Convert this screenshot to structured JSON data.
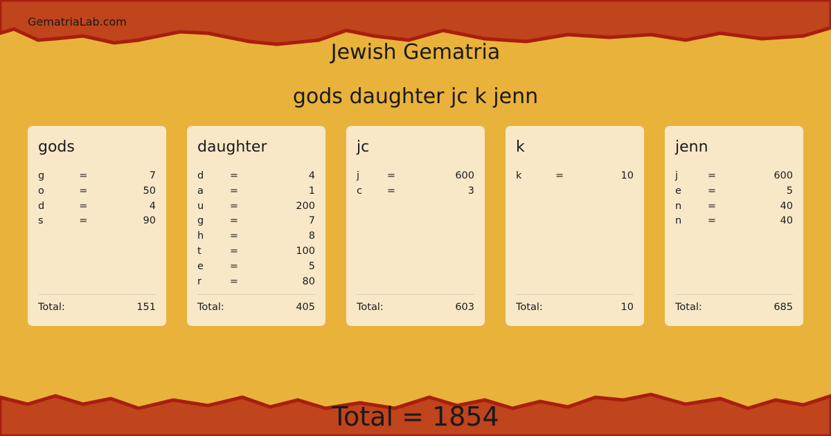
{
  "site": "GematriaLab.com",
  "title": "Jewish Gematria",
  "phrase": "gods daughter jc k jenn",
  "colors": {
    "band": "#c0441c",
    "band_edge": "#a81e0e",
    "background": "#e9b23a",
    "card": "#f8e8c8"
  },
  "total_label": "Total:",
  "eq": "=",
  "words": [
    {
      "word": "gods",
      "letters": [
        [
          "g",
          "7"
        ],
        [
          "o",
          "50"
        ],
        [
          "d",
          "4"
        ],
        [
          "s",
          "90"
        ]
      ],
      "total": "151"
    },
    {
      "word": "daughter",
      "letters": [
        [
          "d",
          "4"
        ],
        [
          "a",
          "1"
        ],
        [
          "u",
          "200"
        ],
        [
          "g",
          "7"
        ],
        [
          "h",
          "8"
        ],
        [
          "t",
          "100"
        ],
        [
          "e",
          "5"
        ],
        [
          "r",
          "80"
        ]
      ],
      "total": "405"
    },
    {
      "word": "jc",
      "letters": [
        [
          "j",
          "600"
        ],
        [
          "c",
          "3"
        ]
      ],
      "total": "603"
    },
    {
      "word": "k",
      "letters": [
        [
          "k",
          "10"
        ]
      ],
      "total": "10"
    },
    {
      "word": "jenn",
      "letters": [
        [
          "j",
          "600"
        ],
        [
          "e",
          "5"
        ],
        [
          "n",
          "40"
        ],
        [
          "n",
          "40"
        ]
      ],
      "total": "685"
    }
  ],
  "grand_total": "Total = 1854"
}
